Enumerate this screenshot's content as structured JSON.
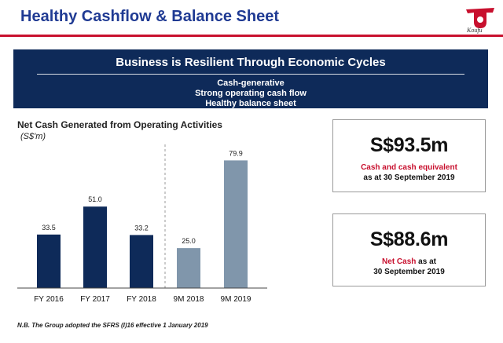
{
  "header": {
    "title": "Healthy Cashflow & Balance Sheet",
    "logo_text": "Koufu"
  },
  "banner": {
    "title": "Business is Resilient Through Economic Cycles",
    "lines": [
      "Cash-generative",
      "Strong operating cash flow",
      "Healthy balance sheet"
    ]
  },
  "chart_heading": "Net Cash Generated from Operating Activities",
  "chart_unit": "(S$'m)",
  "chart_data": {
    "type": "bar",
    "categories": [
      "FY 2016",
      "FY 2017",
      "FY 2018",
      "9M 2018",
      "9M 2019"
    ],
    "values": [
      33.5,
      51.0,
      33.2,
      25.0,
      79.9
    ],
    "value_labels": [
      "33.5",
      "51.0",
      "33.2",
      "25.0",
      "79.9"
    ],
    "title": "Net Cash Generated from Operating Activities",
    "ylabel": "(S$'m)",
    "ylim": [
      0,
      85
    ],
    "grid": false,
    "colors": [
      "#0e2a59",
      "#0e2a59",
      "#0e2a59",
      "#8096ab",
      "#8096ab"
    ]
  },
  "kpi": [
    {
      "value": "S$93.5m",
      "desc_red": "Cash and cash equivalent",
      "desc_black": "",
      "desc_line2": "as at 30 September 2019"
    },
    {
      "value": "S$88.6m",
      "desc_red": "Net Cash",
      "desc_black": " as at",
      "desc_line2": "30 September 2019"
    }
  ],
  "footnote": "N.B. The Group adopted the SFRS (I)16 effective 1 January 2019",
  "colors": {
    "accent_red": "#c8102e",
    "title_blue": "#1f3a93",
    "banner_navy": "#0e2a59"
  }
}
